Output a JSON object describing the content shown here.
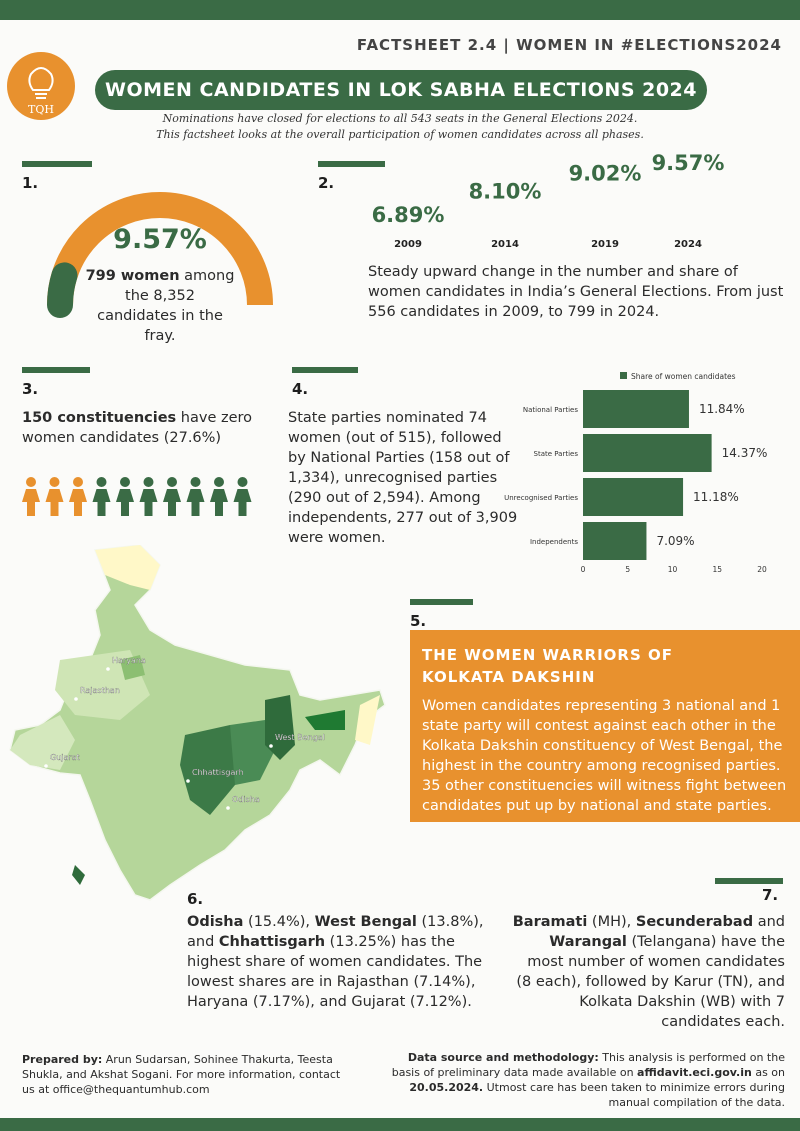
{
  "header": {
    "factsheet": "FACTSHEET 2.4 | WOMEN IN #ELECTIONS2024",
    "logo": "TQH",
    "title": "WOMEN CANDIDATES IN LOK SABHA ELECTIONS 2024",
    "intro": [
      "Nominations have closed for elections to all 543 seats in the General Elections 2024.",
      "This factsheet looks at the overall participation of women candidates across all phases."
    ]
  },
  "section1": {
    "number": "1.",
    "gauge": {
      "value": 9.57,
      "label": "9.57%",
      "lim": [
        0,
        100
      ]
    },
    "text": [
      {
        "text": "799 women",
        "bold": true
      },
      {
        "text": " among the 8,352 candidates in the fray.",
        "bold": false
      }
    ]
  },
  "section2": {
    "number": "2.",
    "chart_data": {
      "type": "trend",
      "categories": [
        "2009",
        "2014",
        "2019",
        "2024"
      ],
      "values": [
        6.89,
        8.1,
        9.02,
        9.57
      ],
      "value_labels": [
        "6.89%",
        "8.10%",
        "9.02%",
        "9.57%"
      ],
      "color": "#3a6b45"
    },
    "text": "Steady upward change in the number and share of women candidates in India’s General Elections. From just 556 candidates in 2009, to 799 in 2024."
  },
  "section3": {
    "number": "3.",
    "text": [
      {
        "text": "150 constituencies",
        "bold": true
      },
      {
        "text": " have zero women candidates (27.6%)",
        "bold": false
      }
    ]
  },
  "section4": {
    "number": "4.",
    "text": "State parties nominated 74 women (out of 515), followed by National Parties (158 out of 1,334), unrecognised parties (290 out of 2,594). Among independents, 277 out of 3,909 were women.",
    "chart_data": {
      "type": "hbar",
      "legend": "Share of women candidates",
      "categories": [
        "National Parties",
        "State Parties",
        "Unrecognised Parties",
        "Independents"
      ],
      "values": [
        11.84,
        14.37,
        11.18,
        7.09
      ],
      "value_labels": [
        "11.84%",
        "14.37%",
        "11.18%",
        "7.09%"
      ],
      "color": "#3a6b45",
      "xlim": [
        0,
        20
      ],
      "xticks": [
        0,
        5,
        10,
        15,
        20
      ]
    }
  },
  "map": {
    "labels": [
      "Haryana",
      "Rajasthan",
      "Gujarat",
      "West Bengal",
      "Chhattisgarh",
      "Odisha"
    ]
  },
  "section5": {
    "number": "5.",
    "heading": [
      "THE WOMEN WARRIORS OF",
      "KOLKATA DAKSHIN"
    ],
    "text": "Women candidates representing 3 national and 1 state party will contest against each other in the Kolkata Dakshin constituency of West Bengal, the highest in the country among recognised parties. 35 other constituencies will witness fight between candidates put up by national and state parties."
  },
  "section6": {
    "number": "6.",
    "text": [
      {
        "text": "Odisha",
        "bold": true
      },
      {
        "text": " (15.4%), ",
        "bold": false
      },
      {
        "text": "West Bengal",
        "bold": true
      },
      {
        "text": " (13.8%), and ",
        "bold": false
      },
      {
        "text": "Chhattisgarh",
        "bold": true
      },
      {
        "text": " (13.25%) has the highest share of women candidates. The lowest shares are in Rajasthan (7.14%), Haryana (7.17%), and Gujarat (7.12%).",
        "bold": false
      }
    ]
  },
  "section7": {
    "number": "7.",
    "text": [
      {
        "text": "Baramati",
        "bold": true
      },
      {
        "text": " (MH), ",
        "bold": false
      },
      {
        "text": "Secunderabad",
        "bold": true
      },
      {
        "text": " and ",
        "bold": false
      },
      {
        "text": "Warangal",
        "bold": true
      },
      {
        "text": " (Telangana) have the most number of women candidates (8 each), followed by Karur (TN), and Kolkata Dakshin (WB) with 7 candidates each.",
        "bold": false
      }
    ]
  },
  "footer": {
    "prepared": [
      {
        "text": "Prepared by:",
        "bold": true
      },
      {
        "text": " Arun Sudarsan, Sohinee Thakurta, Teesta Shukla, and Akshat Sogani. For more information, contact us at office@thequantumhub.com",
        "bold": false
      }
    ],
    "source": [
      {
        "text": "Data source and methodology:",
        "bold": true
      },
      {
        "text": " This analysis is performed on the basis of preliminary data made available on ",
        "bold": false
      },
      {
        "text": "affidavit.eci.gov.in",
        "bold": true
      },
      {
        "text": " as on ",
        "bold": false
      },
      {
        "text": "20.05.2024.",
        "bold": true
      },
      {
        "text": " Utmost care has been taken to minimize errors during manual compilation of the data.",
        "bold": false
      }
    ]
  }
}
